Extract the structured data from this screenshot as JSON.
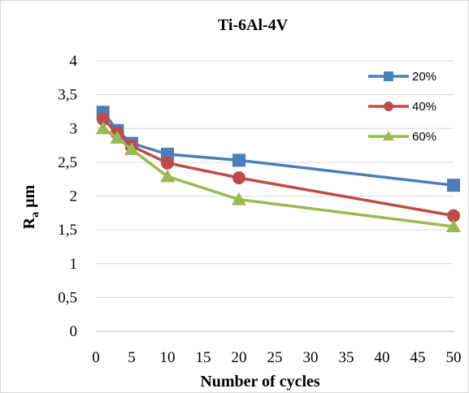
{
  "chart_data": {
    "type": "line",
    "title": "Ti-6Al-4V",
    "xlabel": "Number of cycles",
    "ylabel_main": "R",
    "ylabel_sub": "a",
    "ylabel_unit": " µm",
    "xlim": [
      0,
      50
    ],
    "ylim": [
      0,
      4
    ],
    "x_ticks": [
      0,
      5,
      10,
      15,
      20,
      25,
      30,
      35,
      40,
      45,
      50
    ],
    "y_ticks": [
      0,
      0.5,
      1,
      1.5,
      2,
      2.5,
      3,
      3.5,
      4
    ],
    "y_tick_labels": [
      "0",
      "0,5",
      "1",
      "1,5",
      "2",
      "2,5",
      "3",
      "3,5",
      "4"
    ],
    "grid": "horizontal",
    "legend_position": "top-right",
    "x": [
      1,
      3,
      5,
      10,
      20,
      50
    ],
    "series": [
      {
        "name": "20%",
        "color": "#4a7ebb",
        "marker": "square",
        "values": [
          3.24,
          2.97,
          2.78,
          2.62,
          2.53,
          2.16
        ]
      },
      {
        "name": "40%",
        "color": "#be4b48",
        "marker": "circle",
        "values": [
          3.14,
          2.93,
          2.74,
          2.49,
          2.27,
          1.71
        ]
      },
      {
        "name": "60%",
        "color": "#98b954",
        "marker": "triangle",
        "values": [
          3.0,
          2.86,
          2.69,
          2.29,
          1.95,
          1.55
        ]
      }
    ]
  }
}
